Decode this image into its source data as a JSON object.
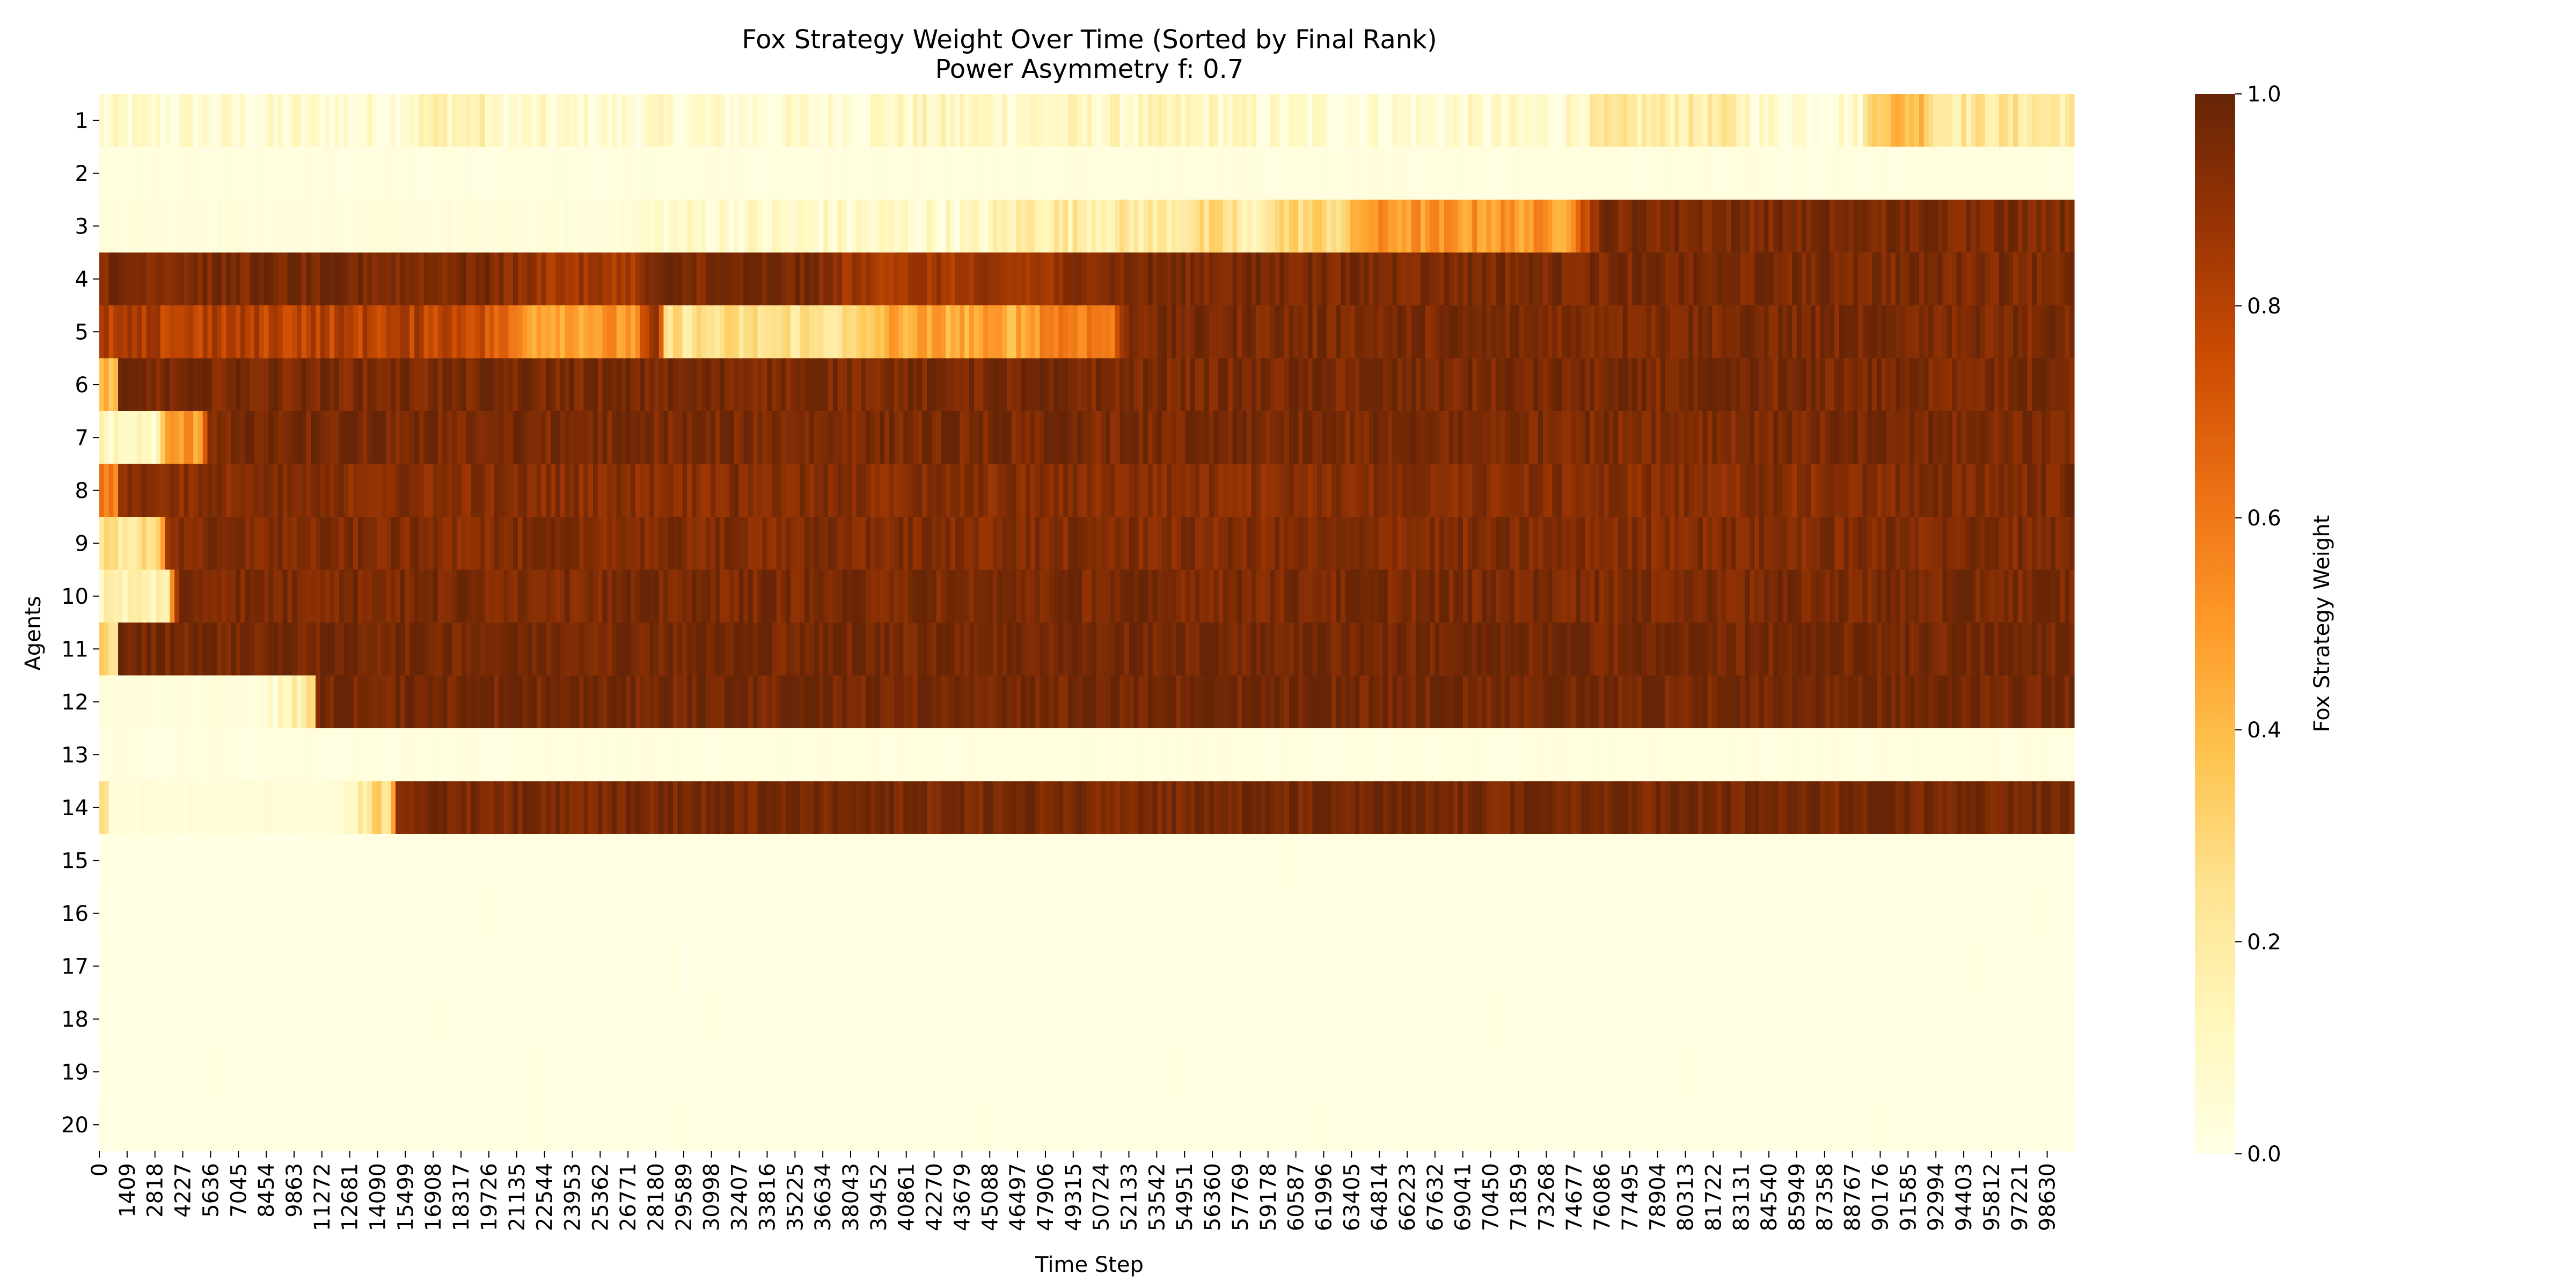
{
  "chart_data": {
    "type": "heatmap",
    "title": "Fox Strategy Weight Over Time (Sorted by Final Rank)",
    "subtitle": "Power Asymmetry f: 0.7",
    "xlabel": "Time Step",
    "ylabel": "Agents",
    "colorbar_label": "Fox Strategy Weight",
    "colorbar_ticks": [
      "0.0",
      "0.2",
      "0.4",
      "0.6",
      "0.8",
      "1.0"
    ],
    "colorbar_range": [
      0.0,
      1.0
    ],
    "colormap": [
      "#ffffe5",
      "#fff7bc",
      "#fee391",
      "#fec44f",
      "#fe9929",
      "#ec7014",
      "#cc4c02",
      "#993404",
      "#662506"
    ],
    "x_range": [
      0,
      99999
    ],
    "x_tick_labels": [
      "0",
      "1409",
      "2818",
      "4227",
      "5636",
      "7045",
      "8454",
      "9863",
      "11272",
      "12681",
      "14090",
      "15499",
      "16908",
      "18317",
      "19726",
      "21135",
      "22544",
      "23953",
      "25362",
      "26771",
      "28180",
      "29589",
      "30998",
      "32407",
      "33816",
      "35225",
      "36634",
      "38043",
      "39452",
      "40861",
      "42270",
      "43679",
      "45088",
      "46497",
      "47906",
      "49315",
      "50724",
      "52133",
      "53542",
      "54951",
      "56360",
      "57769",
      "59178",
      "60587",
      "61996",
      "63405",
      "64814",
      "66223",
      "67632",
      "69041",
      "70450",
      "71859",
      "73268",
      "74677",
      "76086",
      "77495",
      "78904",
      "80313",
      "81722",
      "83131",
      "84540",
      "85949",
      "87358",
      "88767",
      "90176",
      "91585",
      "92994",
      "94403",
      "95812",
      "97221",
      "98630"
    ],
    "agents": [
      "1",
      "2",
      "3",
      "4",
      "5",
      "6",
      "7",
      "8",
      "9",
      "10",
      "11",
      "12",
      "13",
      "14",
      "15",
      "16",
      "17",
      "18",
      "19",
      "20"
    ],
    "rows": [
      {
        "agent": "1",
        "segments": [
          [
            0,
            0.06
          ],
          [
            17000,
            0.15
          ],
          [
            20000,
            0.06
          ],
          [
            40000,
            0.1
          ],
          [
            60000,
            0.06
          ],
          [
            76000,
            0.18
          ],
          [
            84000,
            0.07
          ],
          [
            90000,
            0.4
          ],
          [
            93000,
            0.22
          ],
          [
            99999,
            0.2
          ]
        ]
      },
      {
        "agent": "2",
        "segments": [
          [
            0,
            0.02
          ],
          [
            99999,
            0.02
          ]
        ]
      },
      {
        "agent": "3",
        "segments": [
          [
            0,
            0.03
          ],
          [
            30000,
            0.08
          ],
          [
            47000,
            0.2
          ],
          [
            55000,
            0.25
          ],
          [
            58000,
            0.1
          ],
          [
            59000,
            0.3
          ],
          [
            64000,
            0.5
          ],
          [
            76000,
            0.95
          ],
          [
            99999,
            0.95
          ]
        ]
      },
      {
        "agent": "4",
        "segments": [
          [
            0,
            0.95
          ],
          [
            23000,
            0.85
          ],
          [
            28000,
            0.95
          ],
          [
            38000,
            0.85
          ],
          [
            50000,
            0.95
          ],
          [
            99999,
            0.95
          ]
        ]
      },
      {
        "agent": "5",
        "segments": [
          [
            0,
            0.8
          ],
          [
            22000,
            0.5
          ],
          [
            28000,
            0.85
          ],
          [
            28500,
            0.25
          ],
          [
            40000,
            0.45
          ],
          [
            48000,
            0.6
          ],
          [
            52000,
            0.95
          ],
          [
            99999,
            0.95
          ]
        ]
      },
      {
        "agent": "6",
        "segments": [
          [
            0,
            0.4
          ],
          [
            1000,
            0.95
          ],
          [
            99999,
            0.95
          ]
        ]
      },
      {
        "agent": "7",
        "segments": [
          [
            0,
            0.1
          ],
          [
            3500,
            0.5
          ],
          [
            5500,
            0.95
          ],
          [
            99999,
            0.95
          ]
        ]
      },
      {
        "agent": "8",
        "segments": [
          [
            0,
            0.55
          ],
          [
            1000,
            0.92
          ],
          [
            99999,
            0.95
          ]
        ]
      },
      {
        "agent": "9",
        "segments": [
          [
            0,
            0.25
          ],
          [
            3500,
            0.93
          ],
          [
            99999,
            0.95
          ]
        ]
      },
      {
        "agent": "10",
        "segments": [
          [
            0,
            0.15
          ],
          [
            4000,
            0.95
          ],
          [
            99999,
            0.95
          ]
        ]
      },
      {
        "agent": "11",
        "segments": [
          [
            0,
            0.3
          ],
          [
            1000,
            0.97
          ],
          [
            99999,
            0.97
          ]
        ]
      },
      {
        "agent": "12",
        "segments": [
          [
            0,
            0.03
          ],
          [
            10000,
            0.2
          ],
          [
            11000,
            0.97
          ],
          [
            99999,
            0.97
          ]
        ]
      },
      {
        "agent": "13",
        "segments": [
          [
            0,
            0.02
          ],
          [
            99999,
            0.02
          ]
        ]
      },
      {
        "agent": "14",
        "segments": [
          [
            0,
            0.25
          ],
          [
            500,
            0.04
          ],
          [
            14000,
            0.3
          ],
          [
            15000,
            0.96
          ],
          [
            99999,
            0.96
          ]
        ]
      },
      {
        "agent": "15",
        "segments": [
          [
            0,
            0.01
          ],
          [
            99999,
            0.01
          ]
        ]
      },
      {
        "agent": "16",
        "segments": [
          [
            0,
            0.01
          ],
          [
            99999,
            0.01
          ]
        ]
      },
      {
        "agent": "17",
        "segments": [
          [
            0,
            0.01
          ],
          [
            99999,
            0.01
          ]
        ]
      },
      {
        "agent": "18",
        "segments": [
          [
            0,
            0.01
          ],
          [
            99999,
            0.01
          ]
        ]
      },
      {
        "agent": "19",
        "segments": [
          [
            0,
            0.01
          ],
          [
            99999,
            0.01
          ]
        ]
      },
      {
        "agent": "20",
        "segments": [
          [
            0,
            0.01
          ],
          [
            99999,
            0.01
          ]
        ]
      }
    ]
  }
}
